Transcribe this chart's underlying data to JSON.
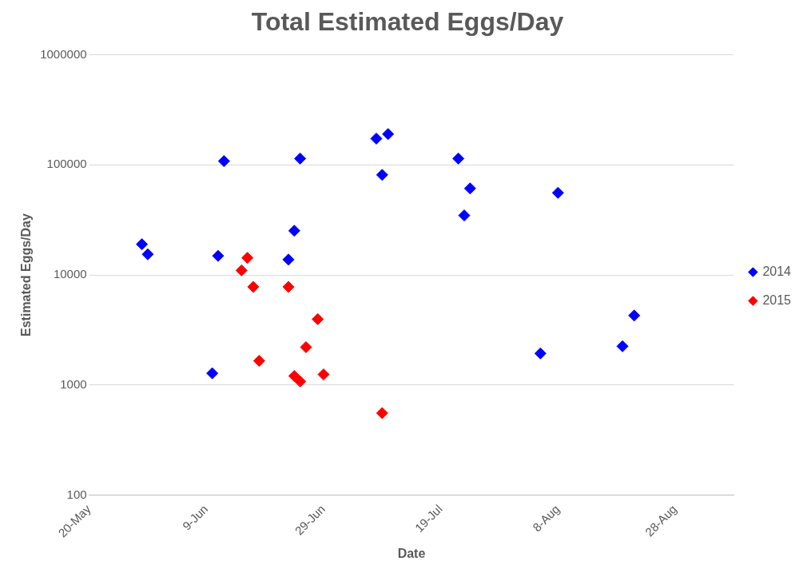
{
  "chart_data": {
    "type": "scatter",
    "title": "Total Estimated Eggs/Day",
    "xlabel": "Date",
    "ylabel": "Estimated Eggs/Day",
    "log": "y",
    "grid": "y",
    "legend": "right",
    "marker": "diamond",
    "xlim": [
      "--05-20",
      "--09-07"
    ],
    "xticks": [
      {
        "value": "--05-20",
        "label": "20-May"
      },
      {
        "value": "--06-09",
        "label": "9-Jun"
      },
      {
        "value": "--06-29",
        "label": "29-Jun"
      },
      {
        "value": "--07-19",
        "label": "19-Jul"
      },
      {
        "value": "--08-08",
        "label": "8-Aug"
      },
      {
        "value": "--08-28",
        "label": "28-Aug"
      }
    ],
    "ylim": [
      100,
      1000000
    ],
    "yticks": [
      100,
      1000,
      10000,
      100000,
      1000000
    ],
    "series": [
      {
        "name": "2014",
        "color": "#0000ff",
        "x": [
          "--05-29",
          "--05-30",
          "--06-10",
          "--06-11",
          "--06-12",
          "--06-23",
          "--06-24",
          "--06-25",
          "--07-08",
          "--07-09",
          "--07-10",
          "--07-22",
          "--07-23",
          "--07-24",
          "--08-05",
          "--08-08",
          "--08-19",
          "--08-21"
        ],
        "values": [
          19000,
          15400,
          1280,
          14900,
          108000,
          13800,
          25200,
          114000,
          173000,
          81000,
          190000,
          114000,
          34700,
          61000,
          1940,
          55700,
          2250,
          4280
        ]
      },
      {
        "name": "2015",
        "color": "#ff0000",
        "x": [
          "--06-15",
          "--06-16",
          "--06-17",
          "--06-18",
          "--06-23",
          "--06-24",
          "--06-25",
          "--06-26",
          "--06-28",
          "--06-29",
          "--07-09"
        ],
        "values": [
          11000,
          14300,
          7800,
          1660,
          7800,
          1210,
          1080,
          2210,
          3970,
          1250,
          557
        ]
      }
    ]
  }
}
